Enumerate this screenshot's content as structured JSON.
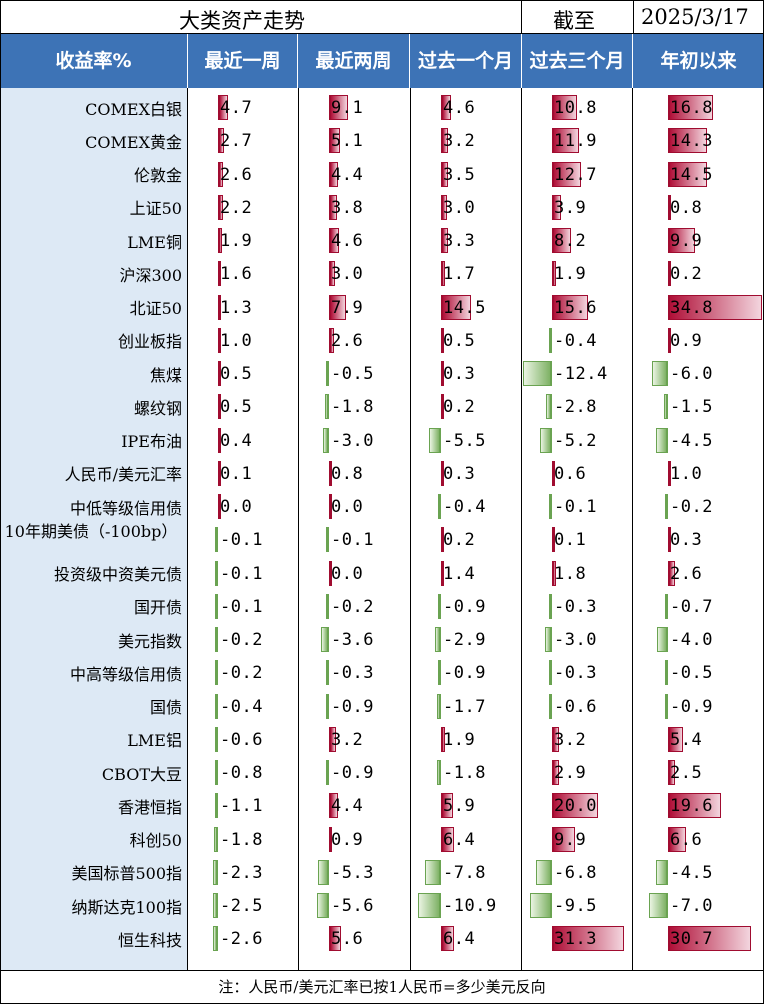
{
  "title": {
    "main": "大类资产走势",
    "as_of_label": "截至",
    "as_of_date": "2025/3/17"
  },
  "headers": [
    "收益率%",
    "最近一周",
    "最近两周",
    "过去一个月",
    "过去三个月",
    "年初以来"
  ],
  "colors": {
    "header_bg": "#3d73b6",
    "label_bg": "#dde9f5",
    "positive": "#b01038",
    "negative": "#7fb266"
  },
  "rows": [
    {
      "label": "COMEX白银",
      "values": [
        4.7,
        9.1,
        4.6,
        10.8,
        16.8
      ],
      "text": [
        "4.7",
        "9.1",
        "4.6",
        "10.8",
        "16.8"
      ]
    },
    {
      "label": "COMEX黄金",
      "values": [
        2.7,
        5.1,
        3.2,
        11.9,
        14.3
      ],
      "text": [
        "2.7",
        "5.1",
        "3.2",
        "11.9",
        "14.3"
      ]
    },
    {
      "label": "伦敦金",
      "values": [
        2.6,
        4.4,
        3.5,
        12.7,
        14.5
      ],
      "text": [
        "2.6",
        "4.4",
        "3.5",
        "12.7",
        "14.5"
      ]
    },
    {
      "label": "上证50",
      "values": [
        2.2,
        3.8,
        3.0,
        3.9,
        0.8
      ],
      "text": [
        "2.2",
        "3.8",
        "3.0",
        "3.9",
        "0.8"
      ]
    },
    {
      "label": "LME铜",
      "values": [
        1.9,
        4.6,
        3.3,
        8.2,
        9.9
      ],
      "text": [
        "1.9",
        "4.6",
        "3.3",
        "8.2",
        "9.9"
      ]
    },
    {
      "label": "沪深300",
      "values": [
        1.6,
        3.0,
        1.7,
        1.9,
        0.2
      ],
      "text": [
        "1.6",
        "3.0",
        "1.7",
        "1.9",
        "0.2"
      ]
    },
    {
      "label": "北证50",
      "values": [
        1.3,
        7.9,
        14.5,
        15.6,
        34.8
      ],
      "text": [
        "1.3",
        "7.9",
        "14.5",
        "15.6",
        "34.8"
      ]
    },
    {
      "label": "创业板指",
      "values": [
        1.0,
        2.6,
        0.5,
        -0.4,
        0.9
      ],
      "text": [
        "1.0",
        "2.6",
        "0.5",
        "-0.4",
        "0.9"
      ]
    },
    {
      "label": "焦煤",
      "values": [
        0.5,
        -0.5,
        0.3,
        -12.4,
        -6.0
      ],
      "text": [
        "0.5",
        "-0.5",
        "0.3",
        "-12.4",
        "-6.0"
      ]
    },
    {
      "label": "螺纹钢",
      "values": [
        0.5,
        -1.8,
        0.2,
        -2.8,
        -1.5
      ],
      "text": [
        "0.5",
        "-1.8",
        "0.2",
        "-2.8",
        "-1.5"
      ]
    },
    {
      "label": "IPE布油",
      "values": [
        0.4,
        -3.0,
        -5.5,
        -5.2,
        -4.5
      ],
      "text": [
        "0.4",
        "-3.0",
        "-5.5",
        "-5.2",
        "-4.5"
      ]
    },
    {
      "label": "人民币/美元汇率",
      "values": [
        0.1,
        0.8,
        0.3,
        0.6,
        1.0
      ],
      "text": [
        "0.1",
        "0.8",
        "0.3",
        "0.6",
        "1.0"
      ]
    },
    {
      "label": "中低等级信用债",
      "values": [
        0.0,
        0.0,
        -0.4,
        -0.1,
        -0.2
      ],
      "text": [
        "0.0",
        "0.0",
        "-0.4",
        "-0.1",
        "-0.2"
      ]
    },
    {
      "label": "10年期美债（-100bp）",
      "values": [
        -0.1,
        -0.1,
        0.2,
        0.1,
        0.3
      ],
      "text": [
        "-0.1",
        "-0.1",
        "0.2",
        "0.1",
        "0.3"
      ]
    },
    {
      "label": "投资级中资美元债",
      "values": [
        -0.1,
        0.0,
        1.4,
        1.8,
        2.6
      ],
      "text": [
        "-0.1",
        "0.0",
        "1.4",
        "1.8",
        "2.6"
      ]
    },
    {
      "label": "国开债",
      "values": [
        -0.1,
        -0.2,
        -0.9,
        -0.3,
        -0.7
      ],
      "text": [
        "-0.1",
        "-0.2",
        "-0.9",
        "-0.3",
        "-0.7"
      ]
    },
    {
      "label": "美元指数",
      "values": [
        -0.2,
        -3.6,
        -2.9,
        -3.0,
        -4.0
      ],
      "text": [
        "-0.2",
        "-3.6",
        "-2.9",
        "-3.0",
        "-4.0"
      ]
    },
    {
      "label": "中高等级信用债",
      "values": [
        -0.2,
        -0.3,
        -0.9,
        -0.3,
        -0.5
      ],
      "text": [
        "-0.2",
        "-0.3",
        "-0.9",
        "-0.3",
        "-0.5"
      ]
    },
    {
      "label": "国债",
      "values": [
        -0.4,
        -0.9,
        -1.7,
        -0.6,
        -0.9
      ],
      "text": [
        "-0.4",
        "-0.9",
        "-1.7",
        "-0.6",
        "-0.9"
      ]
    },
    {
      "label": "LME铝",
      "values": [
        -0.6,
        3.2,
        1.9,
        3.2,
        5.4
      ],
      "text": [
        "-0.6",
        "3.2",
        "1.9",
        "3.2",
        "5.4"
      ]
    },
    {
      "label": "CBOT大豆",
      "values": [
        -0.8,
        -0.9,
        -1.8,
        2.9,
        2.5
      ],
      "text": [
        "-0.8",
        "-0.9",
        "-1.8",
        "2.9",
        "2.5"
      ]
    },
    {
      "label": "香港恒指",
      "values": [
        -1.1,
        4.4,
        5.9,
        20.0,
        19.6
      ],
      "text": [
        "-1.1",
        "4.4",
        "5.9",
        "20.0",
        "19.6"
      ]
    },
    {
      "label": "科创50",
      "values": [
        -1.8,
        0.9,
        6.4,
        9.9,
        6.6
      ],
      "text": [
        "-1.8",
        "0.9",
        "6.4",
        "9.9",
        "6.6"
      ]
    },
    {
      "label": "美国标普500指",
      "values": [
        -2.3,
        -5.3,
        -7.8,
        -6.8,
        -4.5
      ],
      "text": [
        "-2.3",
        "-5.3",
        "-7.8",
        "-6.8",
        "-4.5"
      ]
    },
    {
      "label": "纳斯达克100指",
      "values": [
        -2.5,
        -5.6,
        -10.9,
        -9.5,
        -7.0
      ],
      "text": [
        "-2.5",
        "-5.6",
        "-10.9",
        "-9.5",
        "-7.0"
      ]
    },
    {
      "label": "恒生科技",
      "values": [
        -2.6,
        5.6,
        6.4,
        31.3,
        30.7
      ],
      "text": [
        "-2.6",
        "5.6",
        "6.4",
        "31.3",
        "30.7"
      ]
    }
  ],
  "footer": "注：人民币/美元汇率已按1人民币=多少美元反向"
}
